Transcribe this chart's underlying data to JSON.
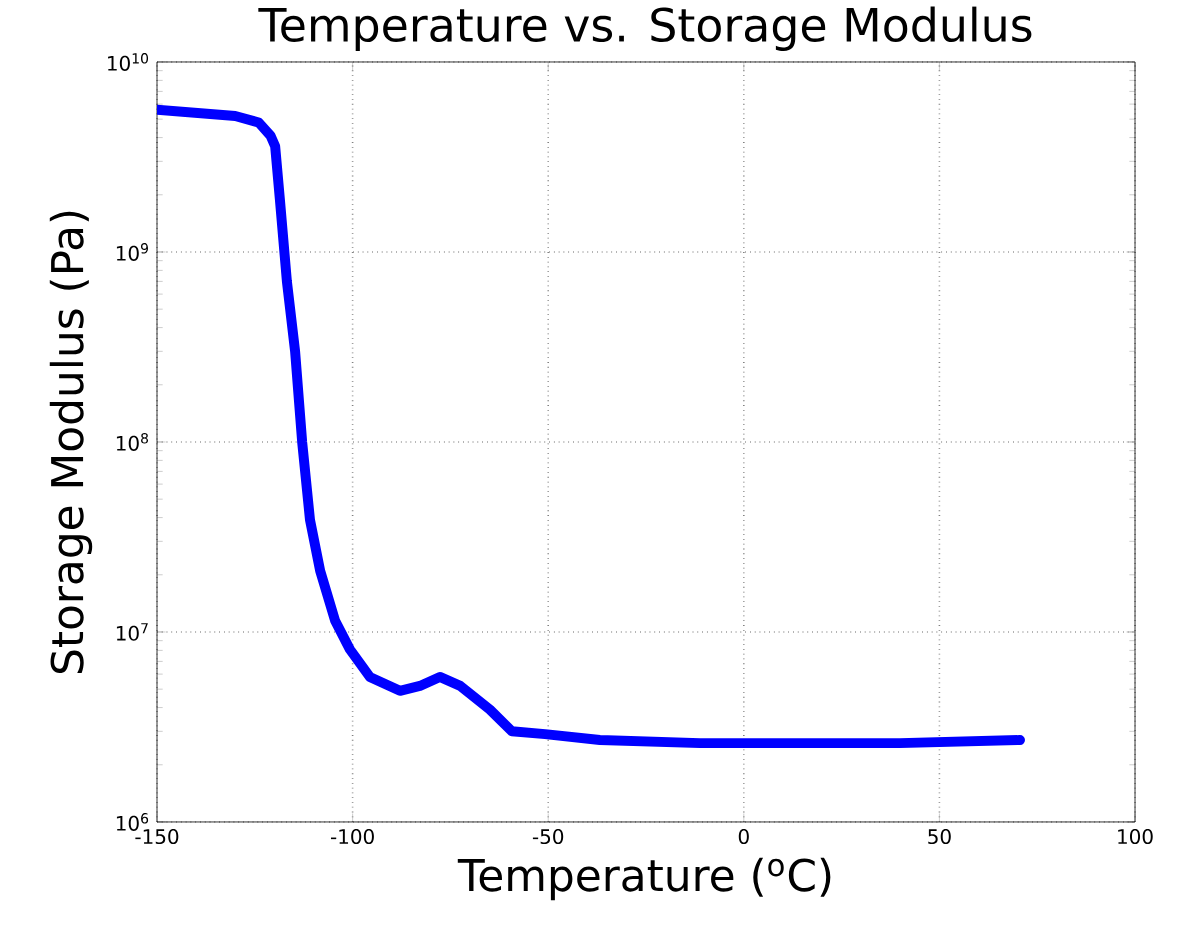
{
  "chart_data": {
    "type": "line",
    "title": "Temperature vs. Storage Modulus",
    "xlabel": "Temperature ($^{o}$C)",
    "ylabel": "Storage Modulus (Pa)",
    "x": [
      -150,
      -130,
      -124,
      -121,
      -119.8,
      -118.6,
      -116.8,
      -114.7,
      -112.9,
      -110.9,
      -108.3,
      -104.5,
      -100.7,
      -95.6,
      -87.9,
      -82.8,
      -77.7,
      -72.5,
      -64.9,
      -59.3,
      -50.8,
      -36.8,
      -11.2,
      39.9,
      70.6
    ],
    "series": [
      {
        "color": "#0000ff",
        "values": [
          5600000000,
          5200000000,
          4800000000,
          4100000000,
          3600000000,
          1900000000,
          700000000,
          300000000,
          100000000,
          39000000,
          21000000,
          11500000,
          8100000,
          5800000,
          4900000,
          5200000,
          5800000,
          5200000,
          3900000,
          3000000,
          2900000,
          2700000,
          2600000,
          2600000,
          2700000
        ]
      }
    ],
    "xlim": [
      -150,
      100
    ],
    "ylim": [
      1000000,
      10000000000
    ],
    "xticks": [
      -150,
      -100,
      -50,
      0,
      50,
      100
    ],
    "yticks": [
      {
        "value": 1000000,
        "label": "10$^{6}$"
      },
      {
        "value": 10000000,
        "label": "10$^{7}$"
      },
      {
        "value": 100000000,
        "label": "10$^{8}$"
      },
      {
        "value": 1000000000,
        "label": "10$^{9}$"
      },
      {
        "value": 10000000000,
        "label": "10$^{10}$"
      }
    ],
    "log": true,
    "grid": true
  }
}
